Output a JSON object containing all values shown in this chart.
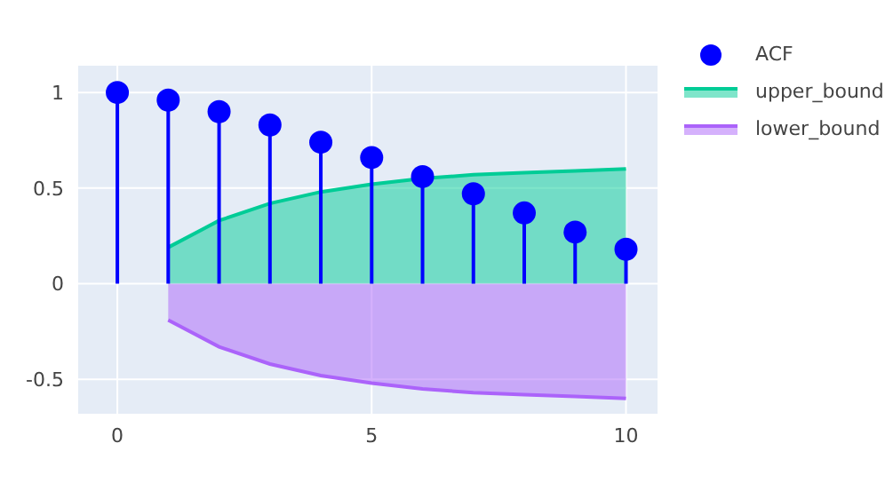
{
  "chart_data": {
    "type": "lollipop",
    "x": [
      0,
      1,
      2,
      3,
      4,
      5,
      6,
      7,
      8,
      9,
      10
    ],
    "series": [
      {
        "name": "ACF",
        "color": "#0000ff",
        "marker": "circle",
        "values": [
          1.0,
          0.96,
          0.9,
          0.83,
          0.74,
          0.66,
          0.56,
          0.47,
          0.37,
          0.27,
          0.18
        ]
      },
      {
        "name": "upper_bound",
        "type": "area",
        "color": "#00cc96",
        "x": [
          1,
          2,
          3,
          4,
          5,
          6,
          7,
          8,
          9,
          10
        ],
        "values": [
          0.19,
          0.33,
          0.42,
          0.48,
          0.52,
          0.55,
          0.57,
          0.58,
          0.59,
          0.6
        ]
      },
      {
        "name": "lower_bound",
        "type": "area",
        "color": "#ab63fa",
        "x": [
          1,
          2,
          3,
          4,
          5,
          6,
          7,
          8,
          9,
          10
        ],
        "values": [
          -0.19,
          -0.33,
          -0.42,
          -0.48,
          -0.52,
          -0.55,
          -0.57,
          -0.58,
          -0.59,
          -0.6
        ]
      }
    ],
    "xlim": [
      -0.77,
      10.62
    ],
    "xticks": [
      0,
      5,
      10
    ],
    "ylim": [
      -0.68,
      1.14
    ],
    "yticks": [
      -0.5,
      0,
      0.5,
      1
    ],
    "grid": true,
    "legend": "top right"
  }
}
